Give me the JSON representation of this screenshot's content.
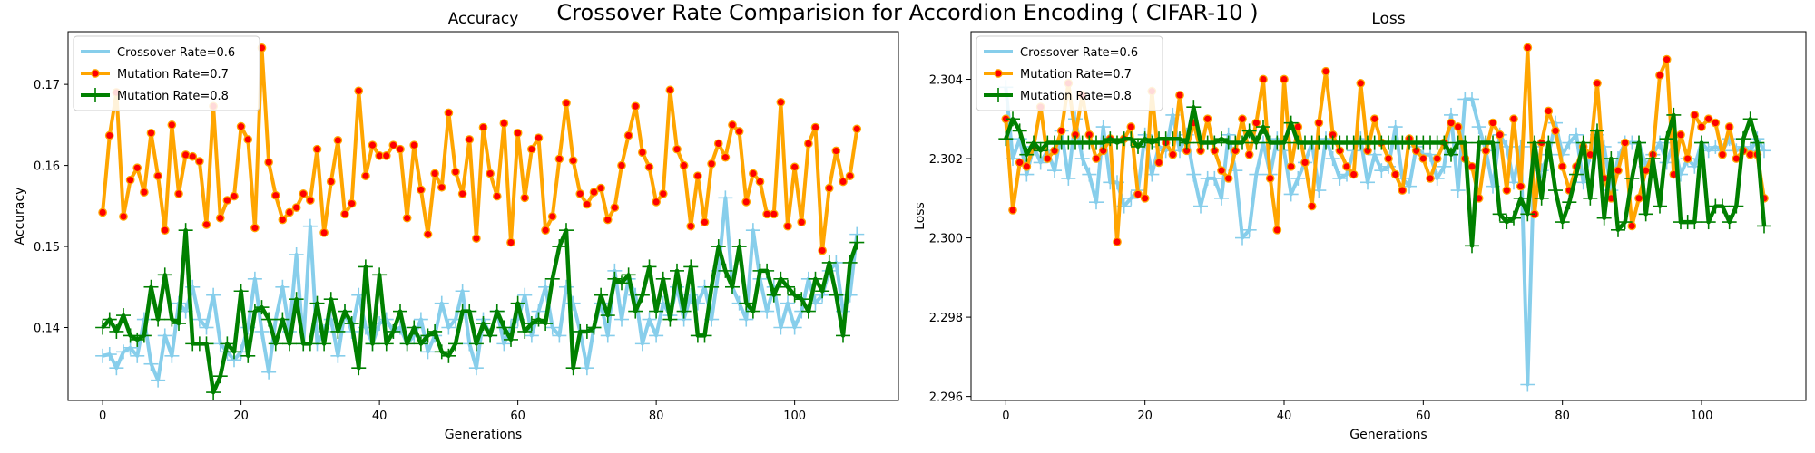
{
  "figure": {
    "suptitle": "Crossover Rate Comparision for Accordion Encoding ( CIFAR-10 )"
  },
  "colors": {
    "crossover": "#87ceeb",
    "mutation07": "#ffa500",
    "mutation07_marker": "#ff0000",
    "mutation08": "#008000"
  },
  "chart_data": [
    {
      "type": "line",
      "title": "Accuracy",
      "xlabel": "Generations",
      "ylabel": "Accuracy",
      "xlim": [
        -5,
        115
      ],
      "ylim": [
        0.131,
        0.1765
      ],
      "xticks": [
        0,
        20,
        40,
        60,
        80,
        100
      ],
      "yticks": [
        0.14,
        0.15,
        0.16,
        0.17
      ],
      "tick_decimals": 2,
      "grid": false,
      "legend": "top-left",
      "x": [
        0,
        1,
        2,
        3,
        4,
        5,
        6,
        7,
        8,
        9,
        10,
        11,
        12,
        13,
        14,
        15,
        16,
        17,
        18,
        19,
        20,
        21,
        22,
        23,
        24,
        25,
        26,
        27,
        28,
        29,
        30,
        31,
        32,
        33,
        34,
        35,
        36,
        37,
        38,
        39,
        40,
        41,
        42,
        43,
        44,
        45,
        46,
        47,
        48,
        49,
        50,
        51,
        52,
        53,
        54,
        55,
        56,
        57,
        58,
        59,
        60,
        61,
        62,
        63,
        64,
        65,
        66,
        67,
        68,
        69,
        70,
        71,
        72,
        73,
        74,
        75,
        76,
        77,
        78,
        79,
        80,
        81,
        82,
        83,
        84,
        85,
        86,
        87,
        88,
        89,
        90,
        91,
        92,
        93,
        94,
        95,
        96,
        97,
        98,
        99,
        100,
        101,
        102,
        103,
        104,
        105,
        106,
        107,
        108,
        109
      ],
      "series": [
        {
          "name": "Crossover Rate=0.6",
          "style": "crossover",
          "values": [
            0.1365,
            0.1367,
            0.135,
            0.137,
            0.1375,
            0.1365,
            0.141,
            0.1355,
            0.1335,
            0.139,
            0.1365,
            0.143,
            0.142,
            0.145,
            0.141,
            0.14,
            0.144,
            0.138,
            0.137,
            0.136,
            0.137,
            0.14,
            0.146,
            0.1395,
            0.1345,
            0.141,
            0.145,
            0.1395,
            0.149,
            0.138,
            0.1525,
            0.138,
            0.1395,
            0.141,
            0.1365,
            0.142,
            0.1395,
            0.144,
            0.14,
            0.138,
            0.1405,
            0.141,
            0.1395,
            0.14,
            0.138,
            0.139,
            0.141,
            0.137,
            0.139,
            0.143,
            0.14,
            0.141,
            0.1445,
            0.138,
            0.135,
            0.141,
            0.139,
            0.142,
            0.138,
            0.14,
            0.141,
            0.144,
            0.139,
            0.142,
            0.145,
            0.14,
            0.139,
            0.145,
            0.143,
            0.1395,
            0.135,
            0.14,
            0.143,
            0.139,
            0.147,
            0.141,
            0.146,
            0.144,
            0.138,
            0.141,
            0.139,
            0.143,
            0.1415,
            0.145,
            0.141,
            0.144,
            0.143,
            0.145,
            0.141,
            0.147,
            0.156,
            0.145,
            0.143,
            0.141,
            0.152,
            0.146,
            0.142,
            0.145,
            0.14,
            0.143,
            0.14,
            0.142,
            0.146,
            0.143,
            0.144,
            0.147,
            0.148,
            0.142,
            0.144,
            0.1515
          ]
        },
        {
          "name": "Mutation Rate=0.7",
          "style": "mutation07",
          "values": [
            0.1542,
            0.1637,
            0.169,
            0.1537,
            0.1582,
            0.1597,
            0.1567,
            0.164,
            0.1587,
            0.152,
            0.165,
            0.1565,
            0.1613,
            0.1611,
            0.1605,
            0.1527,
            0.1673,
            0.1535,
            0.1557,
            0.1562,
            0.1648,
            0.1632,
            0.1523,
            0.1745,
            0.1604,
            0.1563,
            0.1533,
            0.1542,
            0.1548,
            0.1565,
            0.1557,
            0.162,
            0.1517,
            0.158,
            0.1631,
            0.154,
            0.1553,
            0.1692,
            0.1587,
            0.1625,
            0.1612,
            0.1612,
            0.1625,
            0.162,
            0.1535,
            0.1625,
            0.157,
            0.1515,
            0.159,
            0.1573,
            0.1665,
            0.1592,
            0.1565,
            0.1632,
            0.151,
            0.1647,
            0.159,
            0.1562,
            0.1652,
            0.1505,
            0.164,
            0.156,
            0.162,
            0.1634,
            0.152,
            0.1537,
            0.1608,
            0.1677,
            0.1606,
            0.1565,
            0.1552,
            0.1567,
            0.1572,
            0.1533,
            0.1548,
            0.16,
            0.1637,
            0.1673,
            0.1616,
            0.1598,
            0.1555,
            0.1565,
            0.1693,
            0.162,
            0.16,
            0.1525,
            0.1587,
            0.153,
            0.1602,
            0.1627,
            0.161,
            0.165,
            0.1642,
            0.1555,
            0.159,
            0.158,
            0.154,
            0.154,
            0.1678,
            0.1525,
            0.1598,
            0.153,
            0.1627,
            0.1647,
            0.1495,
            0.1572,
            0.1618,
            0.158,
            0.1587,
            0.1645
          ]
        },
        {
          "name": "Mutation Rate=0.8",
          "style": "mutation08",
          "values": [
            0.14,
            0.141,
            0.1395,
            0.1415,
            0.139,
            0.1385,
            0.139,
            0.145,
            0.141,
            0.1465,
            0.141,
            0.1405,
            0.152,
            0.138,
            0.138,
            0.138,
            0.132,
            0.134,
            0.138,
            0.137,
            0.1445,
            0.1365,
            0.142,
            0.1425,
            0.141,
            0.138,
            0.141,
            0.138,
            0.1435,
            0.138,
            0.138,
            0.143,
            0.138,
            0.1435,
            0.1395,
            0.142,
            0.1405,
            0.135,
            0.1475,
            0.138,
            0.1465,
            0.138,
            0.1395,
            0.142,
            0.138,
            0.14,
            0.138,
            0.139,
            0.1395,
            0.137,
            0.1365,
            0.138,
            0.142,
            0.142,
            0.138,
            0.1405,
            0.139,
            0.142,
            0.14,
            0.1385,
            0.143,
            0.1395,
            0.1405,
            0.141,
            0.1405,
            0.146,
            0.15,
            0.152,
            0.135,
            0.1395,
            0.1395,
            0.14,
            0.144,
            0.1415,
            0.146,
            0.1455,
            0.1465,
            0.142,
            0.144,
            0.1475,
            0.142,
            0.146,
            0.141,
            0.147,
            0.142,
            0.1475,
            0.139,
            0.139,
            0.145,
            0.15,
            0.147,
            0.145,
            0.15,
            0.143,
            0.142,
            0.147,
            0.147,
            0.144,
            0.146,
            0.145,
            0.144,
            0.1435,
            0.142,
            0.146,
            0.1445,
            0.148,
            0.144,
            0.139,
            0.148,
            0.1505
          ]
        }
      ]
    },
    {
      "type": "line",
      "title": "Loss",
      "xlabel": "Generations",
      "ylabel": "Loss",
      "xlim": [
        -5,
        115
      ],
      "ylim": [
        2.2959,
        2.3052
      ],
      "xticks": [
        0,
        20,
        40,
        60,
        80,
        100
      ],
      "yticks": [
        2.296,
        2.298,
        2.3,
        2.302,
        2.304
      ],
      "tick_decimals": 3,
      "grid": false,
      "legend": "top-left",
      "x": [
        0,
        1,
        2,
        3,
        4,
        5,
        6,
        7,
        8,
        9,
        10,
        11,
        12,
        13,
        14,
        15,
        16,
        17,
        18,
        19,
        20,
        21,
        22,
        23,
        24,
        25,
        26,
        27,
        28,
        29,
        30,
        31,
        32,
        33,
        34,
        35,
        36,
        37,
        38,
        39,
        40,
        41,
        42,
        43,
        44,
        45,
        46,
        47,
        48,
        49,
        50,
        51,
        52,
        53,
        54,
        55,
        56,
        57,
        58,
        59,
        60,
        61,
        62,
        63,
        64,
        65,
        66,
        67,
        68,
        69,
        70,
        71,
        72,
        73,
        74,
        75,
        76,
        77,
        78,
        79,
        80,
        81,
        82,
        83,
        84,
        85,
        86,
        87,
        88,
        89,
        90,
        91,
        92,
        93,
        94,
        95,
        96,
        97,
        98,
        99,
        100,
        101,
        102,
        103,
        104,
        105,
        106,
        107,
        108,
        109
      ],
      "series": [
        {
          "name": "Crossover Rate=0.6",
          "style": "crossover",
          "values": [
            2.3038,
            2.302,
            2.3025,
            2.3016,
            2.3023,
            2.3019,
            2.3022,
            2.3017,
            2.3027,
            2.3015,
            2.303,
            2.302,
            2.3016,
            2.3009,
            2.3028,
            2.3014,
            2.3014,
            2.3008,
            2.301,
            2.3012,
            2.3026,
            2.3016,
            2.3023,
            2.3022,
            2.3031,
            2.3022,
            2.3026,
            2.3016,
            2.3008,
            2.3015,
            2.3015,
            2.301,
            2.3026,
            2.3017,
            2.3,
            2.3002,
            2.3016,
            2.3024,
            2.3016,
            2.3025,
            2.3022,
            2.3011,
            2.3015,
            2.3019,
            2.3024,
            2.3012,
            2.3025,
            2.302,
            2.3015,
            2.3016,
            2.3022,
            2.3025,
            2.3014,
            2.3021,
            2.3017,
            2.3018,
            2.3028,
            2.3015,
            2.3013,
            2.3023,
            2.3021,
            2.3021,
            2.3015,
            2.3018,
            2.3031,
            2.3012,
            2.3035,
            2.3035,
            2.3028,
            2.3022,
            2.3013,
            2.3026,
            2.3023,
            2.3014,
            2.3023,
            2.2963,
            2.3023,
            2.3017,
            2.3021,
            2.3029,
            2.3021,
            2.3024,
            2.3026,
            2.3014,
            2.3021,
            2.3026,
            2.3023,
            2.3012,
            2.302,
            2.3024,
            2.3024,
            2.3024,
            2.3018,
            2.3021,
            2.3024,
            2.3019,
            2.3024,
            2.3016,
            2.302,
            2.3018,
            2.3024,
            2.3022,
            2.3023,
            2.3022,
            2.3025,
            2.3022,
            2.3023,
            2.3022,
            2.3025,
            2.3022
          ]
        },
        {
          "name": "Mutation Rate=0.7",
          "style": "mutation07",
          "values": [
            2.303,
            2.3007,
            2.3019,
            2.3018,
            2.3023,
            2.3033,
            2.302,
            2.3022,
            2.3027,
            2.3039,
            2.3026,
            2.3036,
            2.3026,
            2.302,
            2.3022,
            2.3025,
            2.2999,
            2.3025,
            2.3028,
            2.3011,
            2.301,
            2.3037,
            2.3019,
            2.3024,
            2.3021,
            2.3036,
            2.3022,
            2.3029,
            2.3022,
            2.303,
            2.3022,
            2.3017,
            2.3015,
            2.3022,
            2.303,
            2.3021,
            2.3029,
            2.304,
            2.3015,
            2.3002,
            2.304,
            2.3018,
            2.3028,
            2.3019,
            2.3008,
            2.3029,
            2.3042,
            2.3026,
            2.3022,
            2.3018,
            2.3016,
            2.3039,
            2.3022,
            2.303,
            2.3024,
            2.302,
            2.3016,
            2.3012,
            2.3025,
            2.3022,
            2.302,
            2.3015,
            2.302,
            2.3024,
            2.3029,
            2.3028,
            2.302,
            2.3018,
            2.301,
            2.3022,
            2.3029,
            2.3026,
            2.3012,
            2.303,
            2.3013,
            2.3048,
            2.3006,
            2.3024,
            2.3032,
            2.3027,
            2.3018,
            2.3012,
            2.3018,
            2.3023,
            2.3021,
            2.3039,
            2.3015,
            2.301,
            2.3017,
            2.3024,
            2.3003,
            2.301,
            2.3017,
            2.3021,
            2.3041,
            2.3045,
            2.3016,
            2.3026,
            2.302,
            2.3031,
            2.3028,
            2.303,
            2.3029,
            2.3021,
            2.3028,
            2.302,
            2.3022,
            2.3021,
            2.3021,
            2.301
          ]
        },
        {
          "name": "Mutation Rate=0.8",
          "style": "mutation08",
          "values": [
            2.3025,
            2.303,
            2.3027,
            2.3021,
            2.3024,
            2.3022,
            2.3024,
            2.3024,
            2.3024,
            2.3024,
            2.3024,
            2.3024,
            2.3024,
            2.3024,
            2.3024,
            2.3025,
            2.3024,
            2.3025,
            2.3025,
            2.3023,
            2.3025,
            2.3024,
            2.3025,
            2.3025,
            2.3025,
            2.3025,
            2.3024,
            2.3033,
            2.3024,
            2.3024,
            2.3024,
            2.3025,
            2.3024,
            2.3024,
            2.3024,
            2.3027,
            2.3024,
            2.3028,
            2.3024,
            2.3024,
            2.3024,
            2.3029,
            2.3024,
            2.3024,
            2.3024,
            2.3024,
            2.3024,
            2.3024,
            2.3024,
            2.3024,
            2.3024,
            2.3024,
            2.3024,
            2.3024,
            2.3024,
            2.3024,
            2.3024,
            2.3024,
            2.3024,
            2.3024,
            2.3024,
            2.3024,
            2.3024,
            2.3024,
            2.3021,
            2.3024,
            2.3024,
            2.2998,
            2.3024,
            2.3024,
            2.3024,
            2.3006,
            2.3004,
            2.3005,
            2.301,
            2.3006,
            2.3024,
            2.301,
            2.3024,
            2.3012,
            2.3004,
            2.3009,
            2.3016,
            2.3024,
            2.301,
            2.3027,
            2.3005,
            2.302,
            2.3002,
            2.3004,
            2.3015,
            2.3024,
            2.3006,
            2.302,
            2.3008,
            2.3025,
            2.3031,
            2.3004,
            2.3004,
            2.3004,
            2.3024,
            2.3004,
            2.3008,
            2.3008,
            2.3004,
            2.3008,
            2.3025,
            2.303,
            2.3024,
            2.3003
          ]
        }
      ]
    }
  ]
}
